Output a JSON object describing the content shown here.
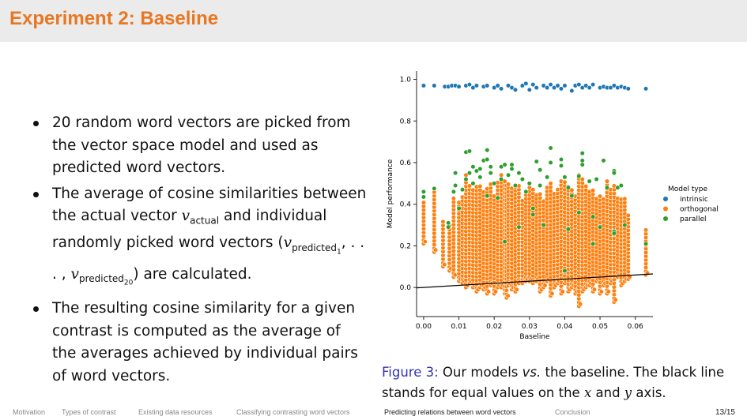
{
  "slide": {
    "title": "Experiment 2: Baseline",
    "bullets": [
      {
        "text": "20 random word vectors are picked from the vector space model and used as predicted word vectors."
      },
      {
        "pre": "The average of cosine similarities between the actual vector ",
        "v": "v",
        "sub_actual": "actual",
        "mid": " and individual randomly picked word vectors (",
        "sub_pred1": "predicted",
        "sub_pred1_idx": "1",
        "dots": ", . . . , ",
        "sub_pred20": "predicted",
        "sub_pred20_idx": "20",
        "post": ") are calculated."
      },
      {
        "text": "The resulting cosine similarity for a given contrast is computed as the average of the averages achieved by individual pairs of word vectors."
      }
    ],
    "caption": {
      "label": "Figure 3:",
      "pre": " Our models ",
      "vs": "vs.",
      "mid": " the baseline. The black line stands for equal values on the ",
      "x": "x",
      "and": " and ",
      "y": "y",
      "post": " axis."
    },
    "nav": [
      "Motivation",
      "Types of contrast",
      "Existing data resources",
      "Classifying contrasting word vectors",
      "Predicting relations between word vectors",
      "Conclusion"
    ],
    "nav_active": 4,
    "page": "13/15",
    "title_color": "#e87722"
  },
  "chart_data": {
    "type": "scatter",
    "xlabel": "Baseline",
    "ylabel": "Model performance",
    "xlim": [
      -0.002,
      0.065
    ],
    "ylim": [
      -0.14,
      1.04
    ],
    "xticks": [
      "0.00",
      "0.01",
      "0.02",
      "0.03",
      "0.04",
      "0.05",
      "0.06"
    ],
    "yticks": [
      "0.0",
      "0.2",
      "0.4",
      "0.6",
      "0.8",
      "1.0"
    ],
    "grid": false,
    "legend": {
      "title": "Model type",
      "placement": "right"
    },
    "reference_line": {
      "label": "y = x",
      "color": "#000000"
    },
    "series": [
      {
        "name": "intrinsic",
        "color": "#1f77b4",
        "points": [
          [
            0,
            0.97
          ],
          [
            0.003,
            0.97
          ],
          [
            0.006,
            0.965
          ],
          [
            0.007,
            0.965
          ],
          [
            0.008,
            0.97
          ],
          [
            0.009,
            0.97
          ],
          [
            0.01,
            0.965
          ],
          [
            0.012,
            0.97
          ],
          [
            0.013,
            0.975
          ],
          [
            0.014,
            0.96
          ],
          [
            0.015,
            0.97
          ],
          [
            0.017,
            0.965
          ],
          [
            0.018,
            0.97
          ],
          [
            0.02,
            0.96
          ],
          [
            0.021,
            0.97
          ],
          [
            0.022,
            0.955
          ],
          [
            0.024,
            0.97
          ],
          [
            0.025,
            0.96
          ],
          [
            0.026,
            0.95
          ],
          [
            0.028,
            0.97
          ],
          [
            0.029,
            0.98
          ],
          [
            0.03,
            0.95
          ],
          [
            0.031,
            0.975
          ],
          [
            0.032,
            0.96
          ],
          [
            0.034,
            0.97
          ],
          [
            0.035,
            0.96
          ],
          [
            0.036,
            0.975
          ],
          [
            0.037,
            0.96
          ],
          [
            0.038,
            0.97
          ],
          [
            0.039,
            0.955
          ],
          [
            0.04,
            0.97
          ],
          [
            0.042,
            0.945
          ],
          [
            0.043,
            0.97
          ],
          [
            0.044,
            0.975
          ],
          [
            0.045,
            0.96
          ],
          [
            0.046,
            0.97
          ],
          [
            0.047,
            0.96
          ],
          [
            0.048,
            0.975
          ],
          [
            0.05,
            0.96
          ],
          [
            0.051,
            0.965
          ],
          [
            0.052,
            0.96
          ],
          [
            0.053,
            0.96
          ],
          [
            0.054,
            0.97
          ],
          [
            0.055,
            0.96
          ],
          [
            0.056,
            0.965
          ],
          [
            0.057,
            0.96
          ],
          [
            0.058,
            0.955
          ],
          [
            0.063,
            0.955
          ]
        ]
      },
      {
        "name": "orthogonal",
        "color": "#ff7f0e",
        "columns": [
          [
            0,
            0.21,
            0.41
          ],
          [
            0.003,
            0.17,
            0.46
          ],
          [
            0.0055,
            0.1,
            0.32
          ],
          [
            0.0073,
            0.08,
            0.3
          ],
          [
            0.0085,
            0.05,
            0.43
          ],
          [
            0.01,
            0.03,
            0.42
          ],
          [
            0.011,
            0.02,
            0.45
          ],
          [
            0.012,
            0,
            0.54
          ],
          [
            0.013,
            0.02,
            0.5
          ],
          [
            0.014,
            0,
            0.47
          ],
          [
            0.015,
            -0.02,
            0.5
          ],
          [
            0.016,
            0,
            0.49
          ],
          [
            0.017,
            -0.01,
            0.46
          ],
          [
            0.018,
            -0.03,
            0.48
          ],
          [
            0.019,
            0.01,
            0.5
          ],
          [
            0.02,
            -0.03,
            0.45
          ],
          [
            0.021,
            0,
            0.52
          ],
          [
            0.022,
            0,
            0.54
          ],
          [
            0.023,
            -0.03,
            0.52
          ],
          [
            0.0235,
            -0.05,
            0.5
          ],
          [
            0.024,
            0.01,
            0.5
          ],
          [
            0.025,
            -0.01,
            0.48
          ],
          [
            0.026,
            -0.02,
            0.5
          ],
          [
            0.027,
            0.02,
            0.49
          ],
          [
            0.028,
            0.02,
            0.43
          ],
          [
            0.029,
            0.03,
            0.47
          ],
          [
            0.03,
            0.03,
            0.5
          ],
          [
            0.031,
            0.02,
            0.47
          ],
          [
            0.032,
            0.03,
            0.46
          ],
          [
            0.033,
            -0.02,
            0.45
          ],
          [
            0.034,
            0,
            0.43
          ],
          [
            0.035,
            0.03,
            0.48
          ],
          [
            0.036,
            -0.04,
            0.51
          ],
          [
            0.037,
            0,
            0.46
          ],
          [
            0.038,
            0.02,
            0.47
          ],
          [
            0.039,
            -0.03,
            0.52
          ],
          [
            0.04,
            0.02,
            0.52
          ],
          [
            0.041,
            -0.02,
            0.49
          ],
          [
            0.042,
            0,
            0.47
          ],
          [
            0.043,
            -0.03,
            0.45
          ],
          [
            0.044,
            -0.09,
            0.54
          ],
          [
            0.045,
            -0.02,
            0.52
          ],
          [
            0.046,
            0,
            0.49
          ],
          [
            0.047,
            0.01,
            0.46
          ],
          [
            0.048,
            -0.02,
            0.48
          ],
          [
            0.049,
            0.03,
            0.44
          ],
          [
            0.05,
            -0.03,
            0.44
          ],
          [
            0.051,
            0.01,
            0.44
          ],
          [
            0.052,
            -0.03,
            0.52
          ],
          [
            0.053,
            0.02,
            0.47
          ],
          [
            0.054,
            -0.07,
            0.49
          ],
          [
            0.055,
            0.05,
            0.43
          ],
          [
            0.056,
            0.01,
            0.43
          ],
          [
            0.057,
            0.03,
            0.43
          ],
          [
            0.058,
            0.04,
            0.35
          ],
          [
            0.063,
            0.06,
            0.29
          ]
        ]
      },
      {
        "name": "parallel",
        "color": "#2ca02c",
        "points": [
          [
            0,
            0.46
          ],
          [
            0,
            0.435
          ],
          [
            0.003,
            0.475
          ],
          [
            0.007,
            0.31
          ],
          [
            0.007,
            0.29
          ],
          [
            0.0085,
            0.46
          ],
          [
            0.009,
            0.55
          ],
          [
            0.009,
            0.49
          ],
          [
            0.01,
            0.38
          ],
          [
            0.011,
            0.47
          ],
          [
            0.012,
            0.65
          ],
          [
            0.012,
            0.52
          ],
          [
            0.013,
            0.655
          ],
          [
            0.013,
            0.55
          ],
          [
            0.014,
            0.58
          ],
          [
            0.014,
            0.5
          ],
          [
            0.015,
            0.56
          ],
          [
            0.016,
            0.57
          ],
          [
            0.016,
            0.53
          ],
          [
            0.017,
            0.61
          ],
          [
            0.018,
            0.66
          ],
          [
            0.018,
            0.615
          ],
          [
            0.018,
            0.44
          ],
          [
            0.019,
            0.58
          ],
          [
            0.019,
            0.55
          ],
          [
            0.02,
            0.5
          ],
          [
            0.021,
            0.43
          ],
          [
            0.022,
            0.58
          ],
          [
            0.022,
            0.52
          ],
          [
            0.023,
            0.59
          ],
          [
            0.023,
            0.22
          ],
          [
            0.024,
            0.54
          ],
          [
            0.025,
            0.59
          ],
          [
            0.025,
            0.57
          ],
          [
            0.026,
            0.49
          ],
          [
            0.027,
            0.55
          ],
          [
            0.027,
            0.29
          ],
          [
            0.028,
            0.52
          ],
          [
            0.029,
            0.46
          ],
          [
            0.03,
            0.5
          ],
          [
            0.031,
            0.38
          ],
          [
            0.031,
            0.35
          ],
          [
            0.032,
            0.605
          ],
          [
            0.033,
            0.565
          ],
          [
            0.033,
            0.49
          ],
          [
            0.034,
            0.3
          ],
          [
            0.035,
            0.53
          ],
          [
            0.036,
            0.67
          ],
          [
            0.036,
            0.6
          ],
          [
            0.039,
            0.615
          ],
          [
            0.039,
            0.585
          ],
          [
            0.04,
            0.53
          ],
          [
            0.04,
            0.08
          ],
          [
            0.041,
            0.48
          ],
          [
            0.041,
            0.28
          ],
          [
            0.042,
            0.44
          ],
          [
            0.044,
            0.535
          ],
          [
            0.044,
            0.36
          ],
          [
            0.045,
            0.645
          ],
          [
            0.045,
            0.61
          ],
          [
            0.045,
            0.59
          ],
          [
            0.047,
            0.51
          ],
          [
            0.048,
            0.34
          ],
          [
            0.048,
            0.21
          ],
          [
            0.049,
            0.52
          ],
          [
            0.05,
            0.29
          ],
          [
            0.051,
            0.61
          ],
          [
            0.052,
            0.48
          ],
          [
            0.054,
            0.56
          ],
          [
            0.054,
            0.55
          ],
          [
            0.054,
            0.27
          ],
          [
            0.054,
            0.26
          ],
          [
            0.055,
            0.48
          ],
          [
            0.056,
            0.49
          ],
          [
            0.057,
            0.3
          ],
          [
            0.063,
            0.21
          ]
        ]
      }
    ]
  }
}
